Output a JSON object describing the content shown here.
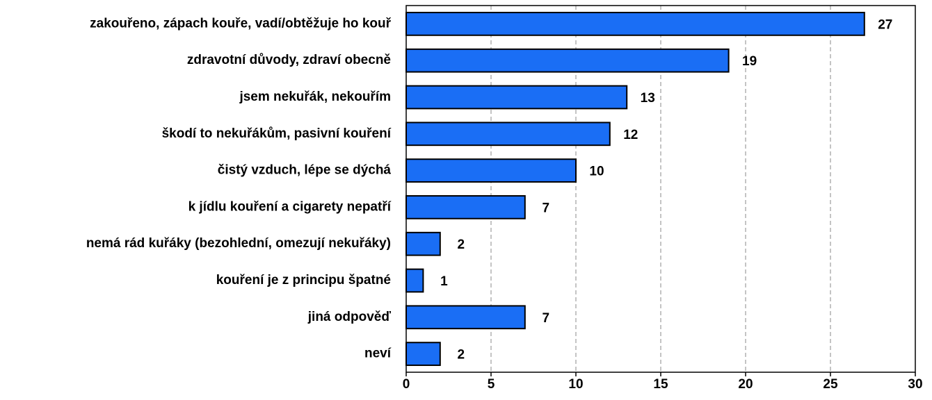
{
  "chart_data": {
    "type": "barh",
    "categories": [
      "zakouřeno, zápach kouře, vadí/obtěžuje ho kouř",
      "zdravotní důvody, zdraví obecně",
      "jsem nekuřák, nekouřím",
      "škodí to nekuřákům, pasivní kouření",
      "čistý vzduch, lépe se dýchá",
      "k jídlu kouření a cigarety nepatří",
      "nemá rád kuřáky (bezohlední, omezují nekuřáky)",
      "kouření je z principu špatné",
      "jiná odpověď",
      "neví"
    ],
    "values": [
      27,
      19,
      13,
      12,
      10,
      7,
      2,
      1,
      7,
      2
    ],
    "color": "#1a6ef5",
    "xlim": [
      0,
      30
    ],
    "xticks": [
      0,
      5,
      10,
      15,
      20,
      25,
      30
    ],
    "grid": true
  }
}
